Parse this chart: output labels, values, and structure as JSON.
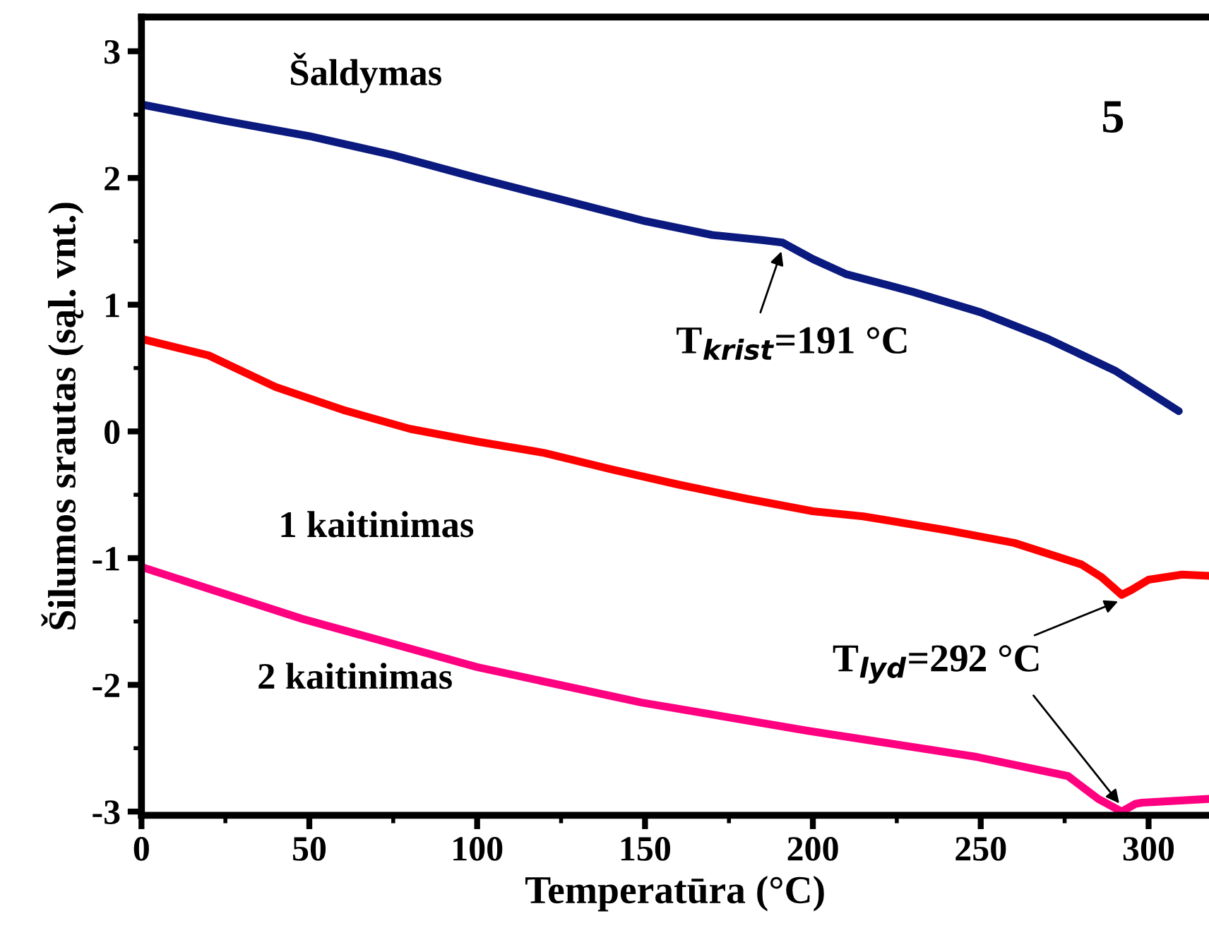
{
  "chart_data": {
    "type": "line",
    "xlabel": "Temperatūra (°C)",
    "ylabel": "Šilumos srautas (sąl. vnt.)",
    "xlim": [
      0,
      318
    ],
    "ylim": [
      -3.03,
      3.27
    ],
    "xticks": [
      0,
      50,
      100,
      150,
      200,
      250,
      300
    ],
    "yticks": [
      -3,
      -2,
      -1,
      0,
      1,
      2,
      3
    ],
    "grid": false,
    "legend": false,
    "marker": "none",
    "line_style": "solid",
    "series": [
      {
        "name": "Šaldymas",
        "color": "#0b1a7e",
        "x": [
          0,
          25,
          50,
          75,
          100,
          125,
          150,
          170,
          185,
          191,
          200,
          210,
          230,
          250,
          270,
          290,
          309
        ],
        "values": [
          2.58,
          2.45,
          2.33,
          2.18,
          2.0,
          1.83,
          1.66,
          1.55,
          1.51,
          1.49,
          1.36,
          1.24,
          1.1,
          0.94,
          0.73,
          0.48,
          0.16
        ]
      },
      {
        "name": "1 kaitinimas",
        "color": "#ff0000",
        "x": [
          0,
          20,
          40,
          60,
          80,
          100,
          120,
          140,
          160,
          180,
          200,
          215,
          240,
          260,
          280,
          286,
          292,
          295,
          300,
          310,
          318
        ],
        "values": [
          0.73,
          0.6,
          0.35,
          0.17,
          0.02,
          -0.08,
          -0.17,
          -0.3,
          -0.42,
          -0.53,
          -0.63,
          -0.67,
          -0.78,
          -0.88,
          -1.05,
          -1.15,
          -1.29,
          -1.25,
          -1.17,
          -1.13,
          -1.14
        ]
      },
      {
        "name": "2 kaitinimas",
        "color": "#ff0080",
        "x": [
          0,
          48,
          100,
          149,
          198,
          249,
          276,
          285,
          292,
          296,
          298,
          318
        ],
        "values": [
          -1.07,
          -1.48,
          -1.86,
          -2.14,
          -2.36,
          -2.57,
          -2.72,
          -2.9,
          -3.0,
          -2.94,
          -2.93,
          -2.9
        ]
      }
    ],
    "annotations": [
      "5",
      {
        "text": "T$_{krist}$=191 °C",
        "x": 191,
        "y": 1.49
      },
      {
        "text": "T$_{lyd}$=292 °C",
        "x": 292,
        "y": -1.29
      }
    ]
  }
}
